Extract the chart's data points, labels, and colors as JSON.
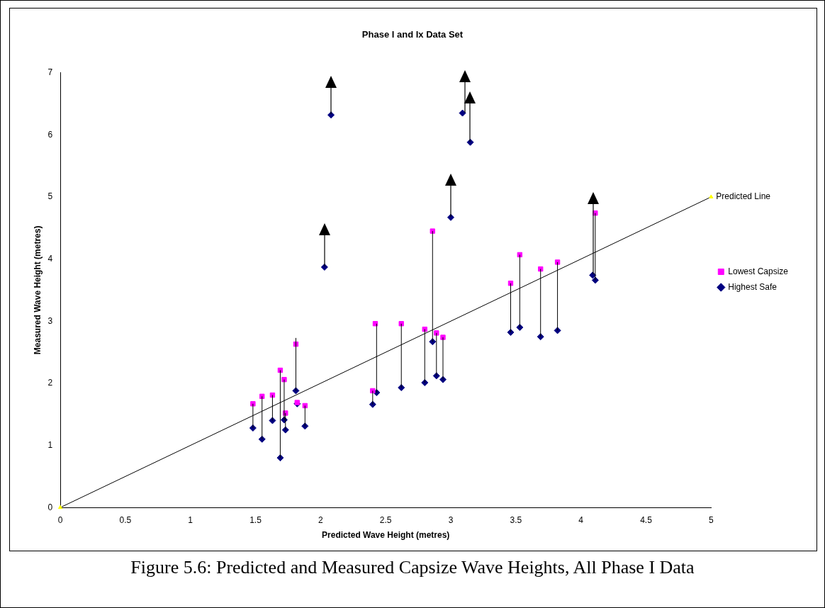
{
  "chart_data": {
    "type": "scatter",
    "title": "Phase I and Ix Data Set",
    "xlabel": "Predicted Wave Height (metres)",
    "ylabel": "Measured Wave Height (metres)",
    "xlim": [
      0,
      5
    ],
    "xticks": [
      0,
      0.5,
      1,
      1.5,
      2,
      2.5,
      3,
      3.5,
      4,
      4.5,
      5
    ],
    "ylim": [
      0,
      7
    ],
    "yticks": [
      0,
      1,
      2,
      3,
      4,
      5,
      6,
      7
    ],
    "grid": false,
    "legend": "right",
    "series": [
      {
        "type": "line",
        "color": "#000000",
        "marker": "none",
        "x": [
          1.48,
          1.48
        ],
        "values": [
          1.28,
          1.67
        ]
      },
      {
        "type": "line",
        "color": "#000000",
        "marker": "none",
        "x": [
          1.55,
          1.55
        ],
        "values": [
          1.1,
          1.79
        ]
      },
      {
        "type": "line",
        "color": "#000000",
        "marker": "none",
        "x": [
          1.63,
          1.63
        ],
        "values": [
          1.4,
          1.81
        ]
      },
      {
        "type": "line",
        "color": "#000000",
        "marker": "none",
        "x": [
          1.69,
          1.69
        ],
        "values": [
          0.8,
          2.21
        ]
      },
      {
        "type": "line",
        "color": "#000000",
        "marker": "none",
        "x": [
          1.72,
          1.72
        ],
        "values": [
          1.41,
          2.06
        ]
      },
      {
        "type": "line",
        "color": "#000000",
        "marker": "none",
        "x": [
          1.73,
          1.73
        ],
        "values": [
          1.25,
          1.52
        ]
      },
      {
        "type": "line",
        "color": "#000000",
        "marker": "none",
        "x": [
          1.81,
          1.81
        ],
        "values": [
          1.88,
          2.73
        ]
      },
      {
        "type": "line",
        "color": "#000000",
        "marker": "none",
        "x": [
          1.88,
          1.88
        ],
        "values": [
          1.31,
          1.64
        ]
      },
      {
        "type": "line",
        "color": "#000000",
        "marker": "none",
        "x": [
          2.4,
          2.4
        ],
        "values": [
          1.66,
          1.88
        ]
      },
      {
        "type": "line",
        "color": "#000000",
        "marker": "none",
        "x": [
          2.43,
          2.43
        ],
        "values": [
          1.85,
          2.96
        ]
      },
      {
        "type": "line",
        "color": "#000000",
        "marker": "none",
        "x": [
          2.62,
          2.62
        ],
        "values": [
          1.93,
          2.96
        ]
      },
      {
        "type": "line",
        "color": "#000000",
        "marker": "none",
        "x": [
          2.8,
          2.8
        ],
        "values": [
          2.01,
          2.87
        ]
      },
      {
        "type": "line",
        "color": "#000000",
        "marker": "none",
        "x": [
          2.86,
          2.86
        ],
        "values": [
          2.67,
          4.45
        ]
      },
      {
        "type": "line",
        "color": "#000000",
        "marker": "none",
        "x": [
          2.89,
          2.89
        ],
        "values": [
          2.12,
          2.81
        ]
      },
      {
        "type": "line",
        "color": "#000000",
        "marker": "none",
        "x": [
          2.94,
          2.94
        ],
        "values": [
          2.06,
          2.74
        ]
      },
      {
        "type": "line",
        "color": "#000000",
        "marker": "none",
        "x": [
          3.46,
          3.46
        ],
        "values": [
          2.82,
          3.61
        ]
      },
      {
        "type": "line",
        "color": "#000000",
        "marker": "none",
        "x": [
          3.53,
          3.53
        ],
        "values": [
          2.9,
          4.07
        ]
      },
      {
        "type": "line",
        "color": "#000000",
        "marker": "none",
        "x": [
          3.69,
          3.69
        ],
        "values": [
          2.75,
          3.84
        ]
      },
      {
        "type": "line",
        "color": "#000000",
        "marker": "none",
        "x": [
          3.82,
          3.82
        ],
        "values": [
          2.85,
          3.95
        ]
      },
      {
        "type": "line",
        "color": "#000000",
        "marker": "none",
        "x": [
          4.11,
          4.11
        ],
        "values": [
          3.66,
          4.74
        ]
      },
      {
        "name": "Lowest Capsize",
        "color": "#ff00ff",
        "marker": "square",
        "x": [
          1.48,
          1.55,
          1.63,
          1.69,
          1.72,
          1.73,
          1.81,
          1.82,
          1.88,
          2.4,
          2.42,
          2.62,
          2.8,
          2.86,
          2.89,
          2.94,
          3.46,
          3.53,
          3.69,
          3.82,
          4.11
        ],
        "values": [
          1.67,
          1.79,
          1.81,
          2.21,
          2.06,
          1.52,
          2.63,
          1.69,
          1.64,
          1.88,
          2.96,
          2.96,
          2.87,
          4.45,
          2.81,
          2.74,
          3.61,
          4.07,
          3.84,
          3.95,
          4.74
        ]
      },
      {
        "name": "Highest Safe",
        "color": "#000080",
        "marker": "diamond",
        "x": [
          1.48,
          1.55,
          1.63,
          1.69,
          1.72,
          1.73,
          1.81,
          1.82,
          1.88,
          2.03,
          2.08,
          2.4,
          2.43,
          2.62,
          2.8,
          2.86,
          2.89,
          2.94,
          3.0,
          3.09,
          3.15,
          3.46,
          3.53,
          3.69,
          3.82,
          4.09,
          4.11
        ],
        "values": [
          1.28,
          1.1,
          1.4,
          0.8,
          1.41,
          1.25,
          1.88,
          1.67,
          1.31,
          3.87,
          6.32,
          1.66,
          1.85,
          1.93,
          2.01,
          2.67,
          2.12,
          2.06,
          4.67,
          6.35,
          5.88,
          2.82,
          2.9,
          2.75,
          2.85,
          3.74,
          3.66
        ]
      },
      {
        "name": "Predicted Line",
        "type": "line",
        "color": "#000000",
        "marker": "triangle",
        "line_style": "solid",
        "x": [
          0,
          5
        ],
        "values": [
          0,
          5
        ]
      }
    ],
    "annotations": [
      "Figure 5.6: Predicted and Measured Capsize Wave Heights, All Phase I Data"
    ]
  }
}
